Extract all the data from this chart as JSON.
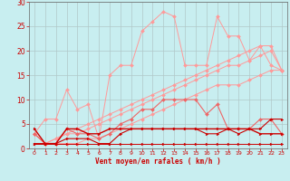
{
  "x": [
    0,
    1,
    2,
    3,
    4,
    5,
    6,
    7,
    8,
    9,
    10,
    11,
    12,
    13,
    14,
    15,
    16,
    17,
    18,
    19,
    20,
    21,
    22,
    23
  ],
  "line_pink_jagged": [
    3,
    6,
    6,
    12,
    8,
    9,
    2,
    15,
    17,
    17,
    24,
    26,
    28,
    27,
    17,
    17,
    17,
    27,
    23,
    23,
    18,
    21,
    17,
    16
  ],
  "line_pink_diag1": [
    3,
    1,
    2,
    3,
    4,
    5,
    6,
    7,
    8,
    9,
    10,
    11,
    12,
    13,
    14,
    15,
    16,
    17,
    18,
    19,
    20,
    21,
    21,
    16
  ],
  "line_pink_diag2": [
    3,
    1,
    2,
    3,
    3,
    4,
    5,
    6,
    7,
    8,
    9,
    10,
    11,
    12,
    13,
    14,
    15,
    16,
    17,
    17,
    18,
    19,
    20,
    16
  ],
  "line_pink_flat": [
    3,
    1,
    1,
    1,
    1,
    2,
    2,
    3,
    4,
    5,
    6,
    7,
    8,
    9,
    10,
    11,
    12,
    13,
    13,
    13,
    14,
    15,
    16,
    16
  ],
  "line_med_jagged": [
    3,
    1,
    1,
    4,
    3,
    3,
    2,
    3,
    5,
    6,
    8,
    8,
    10,
    10,
    10,
    10,
    7,
    9,
    4,
    4,
    4,
    6,
    6,
    3
  ],
  "line_dark_jagged": [
    1,
    1,
    1,
    2,
    2,
    2,
    1,
    1,
    3,
    4,
    4,
    4,
    4,
    4,
    4,
    4,
    3,
    3,
    4,
    3,
    4,
    4,
    6,
    6
  ],
  "line_dark_flat": [
    4,
    1,
    1,
    4,
    4,
    3,
    3,
    4,
    4,
    4,
    4,
    4,
    4,
    4,
    4,
    4,
    4,
    4,
    4,
    4,
    4,
    3,
    3,
    3
  ],
  "line_dark_bottom": [
    1,
    1,
    1,
    1,
    1,
    1,
    1,
    1,
    1,
    1,
    1,
    1,
    1,
    1,
    1,
    1,
    1,
    1,
    1,
    1,
    1,
    1,
    1,
    1
  ],
  "bg_color": "#c8eef0",
  "grid_color": "#b0c8c8",
  "tick_color": "#cc0000",
  "color_light": "#ff9999",
  "color_mid": "#ee6666",
  "color_dark": "#cc0000",
  "xlabel": "Vent moyen/en rafales ( km/h )",
  "ylim": [
    0,
    30
  ],
  "xlim": [
    -0.5,
    23.5
  ]
}
